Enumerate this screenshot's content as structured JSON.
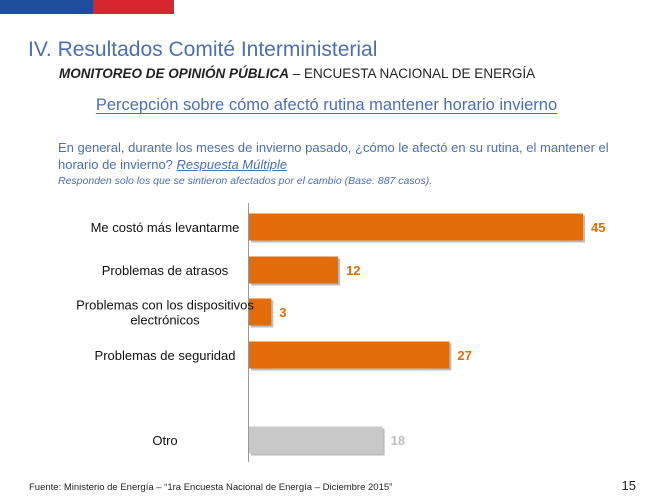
{
  "header": {
    "title": "IV. Resultados Comité Interministerial",
    "subtitle_bold": "MONITOREO DE OPINIÓN PÚBLICA",
    "subtitle_rest": " – ENCUESTA NACIONAL DE ENERGÍA"
  },
  "section_title": "Percepción sobre cómo afectó rutina mantener horario invierno",
  "question": {
    "text": "En general, durante los meses de invierno pasado, ¿cómo le afectó en su rutina, el mantener el horario de invierno? ",
    "response_type": "Respuesta Múltiple",
    "note": "Responden solo los que se sintieron afectados por el cambio (Base: 887 casos)."
  },
  "chart_data": {
    "type": "bar",
    "orientation": "horizontal",
    "categories": [
      [
        "Me costó más levantarme"
      ],
      [
        "Problemas de atrasos"
      ],
      [
        "Problemas con los dispositivos",
        "electrónicos"
      ],
      [
        "Problemas de seguridad"
      ],
      [
        "Otro"
      ]
    ],
    "values": [
      45,
      12,
      3,
      27,
      18
    ],
    "labels": [
      "45",
      "12",
      "3",
      "27",
      "18"
    ],
    "colors": [
      "#e36c0a",
      "#e36c0a",
      "#e36c0a",
      "#e36c0a",
      "#c8c8c8"
    ],
    "label_colors": [
      "#e36c0a",
      "#e36c0a",
      "#e36c0a",
      "#e36c0a",
      "#c0c0c0"
    ],
    "xlim": [
      0,
      45
    ]
  },
  "footer": {
    "source": "Fuente: Ministerio de Energía – “1ra Encuesta Nacional de Energía – Diciembre 2015”",
    "page_number": "15"
  }
}
